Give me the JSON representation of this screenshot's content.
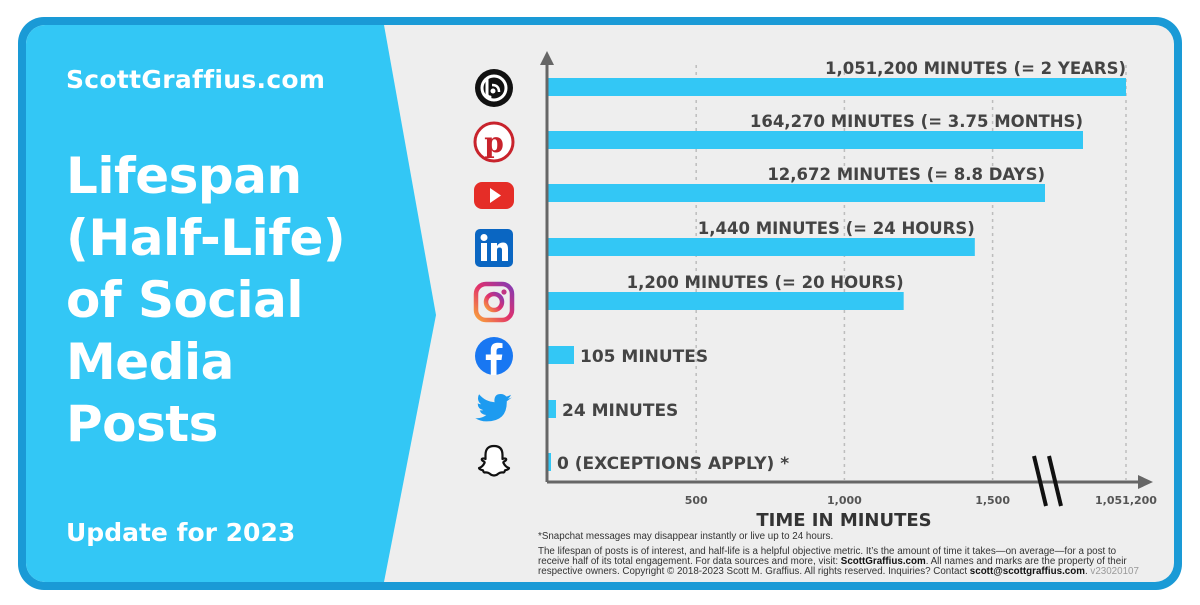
{
  "brand": {
    "site": "ScottGraffius.com",
    "title_lines": [
      "Lifespan",
      "(Half-Life)",
      "of Social",
      "Media",
      "Posts"
    ],
    "update": "Update for 2023",
    "colors": {
      "panel": "#33c7f5",
      "frame": "#1a9ad6",
      "bar": "#33c7f5",
      "background": "#eeeeee"
    }
  },
  "platforms": [
    {
      "name": "Blog",
      "icon": "blog-icon"
    },
    {
      "name": "Pinterest",
      "icon": "pinterest-icon"
    },
    {
      "name": "YouTube",
      "icon": "youtube-icon"
    },
    {
      "name": "LinkedIn",
      "icon": "linkedin-icon"
    },
    {
      "name": "Instagram",
      "icon": "instagram-icon"
    },
    {
      "name": "Facebook",
      "icon": "facebook-icon"
    },
    {
      "name": "Twitter",
      "icon": "twitter-icon"
    },
    {
      "name": "Snapchat",
      "icon": "snapchat-icon"
    }
  ],
  "chart_data": {
    "type": "bar",
    "orientation": "horizontal",
    "categories": [
      "Blog",
      "Pinterest",
      "YouTube",
      "LinkedIn",
      "Instagram",
      "Facebook",
      "Twitter",
      "Snapchat"
    ],
    "values": [
      1051200,
      164270,
      12672,
      1440,
      1200,
      105,
      24,
      0
    ],
    "data_labels": [
      "1,051,200 MINUTES (= 2 YEARS)",
      "164,270 MINUTES (= 3.75 MONTHS)",
      "12,672 MINUTES (= 8.8 DAYS)",
      "1,440 MINUTES (= 24 HOURS)",
      "1,200 MINUTES (= 20 HOURS)",
      "105 MINUTES",
      "24 MINUTES",
      "0 (EXCEPTIONS APPLY) *"
    ],
    "xlabel": "TIME IN MINUTES",
    "x_ticks": [
      {
        "value": 500,
        "label": "500"
      },
      {
        "value": 1000,
        "label": "1,000"
      },
      {
        "value": 1500,
        "label": "1,500"
      },
      {
        "value": 1051200,
        "label": "1,051,200"
      }
    ],
    "axis_break": true,
    "grid": "vertical dashed",
    "note": "not to scale beyond the axis break"
  },
  "footnote": "*Snapchat messages may disappear instantly or live up to 24 hours.",
  "description_lines": [
    "The lifespan of posts is of interest, and half-life is a helpful objective metric. It’s the amount of time it takes—on average—for a post to",
    "receive half of its total engagement. For data sources and more, visit:",
    "respective owners. Copyright © 2018-2023 Scott M. Graffius. All rights reserved. Inquiries? Contact"
  ],
  "description_link": "ScottGraffius.com",
  "description_after_link": ". All names and marks are the property of their",
  "contact_email": "scott@scottgraffius.com",
  "version": "v23020107"
}
